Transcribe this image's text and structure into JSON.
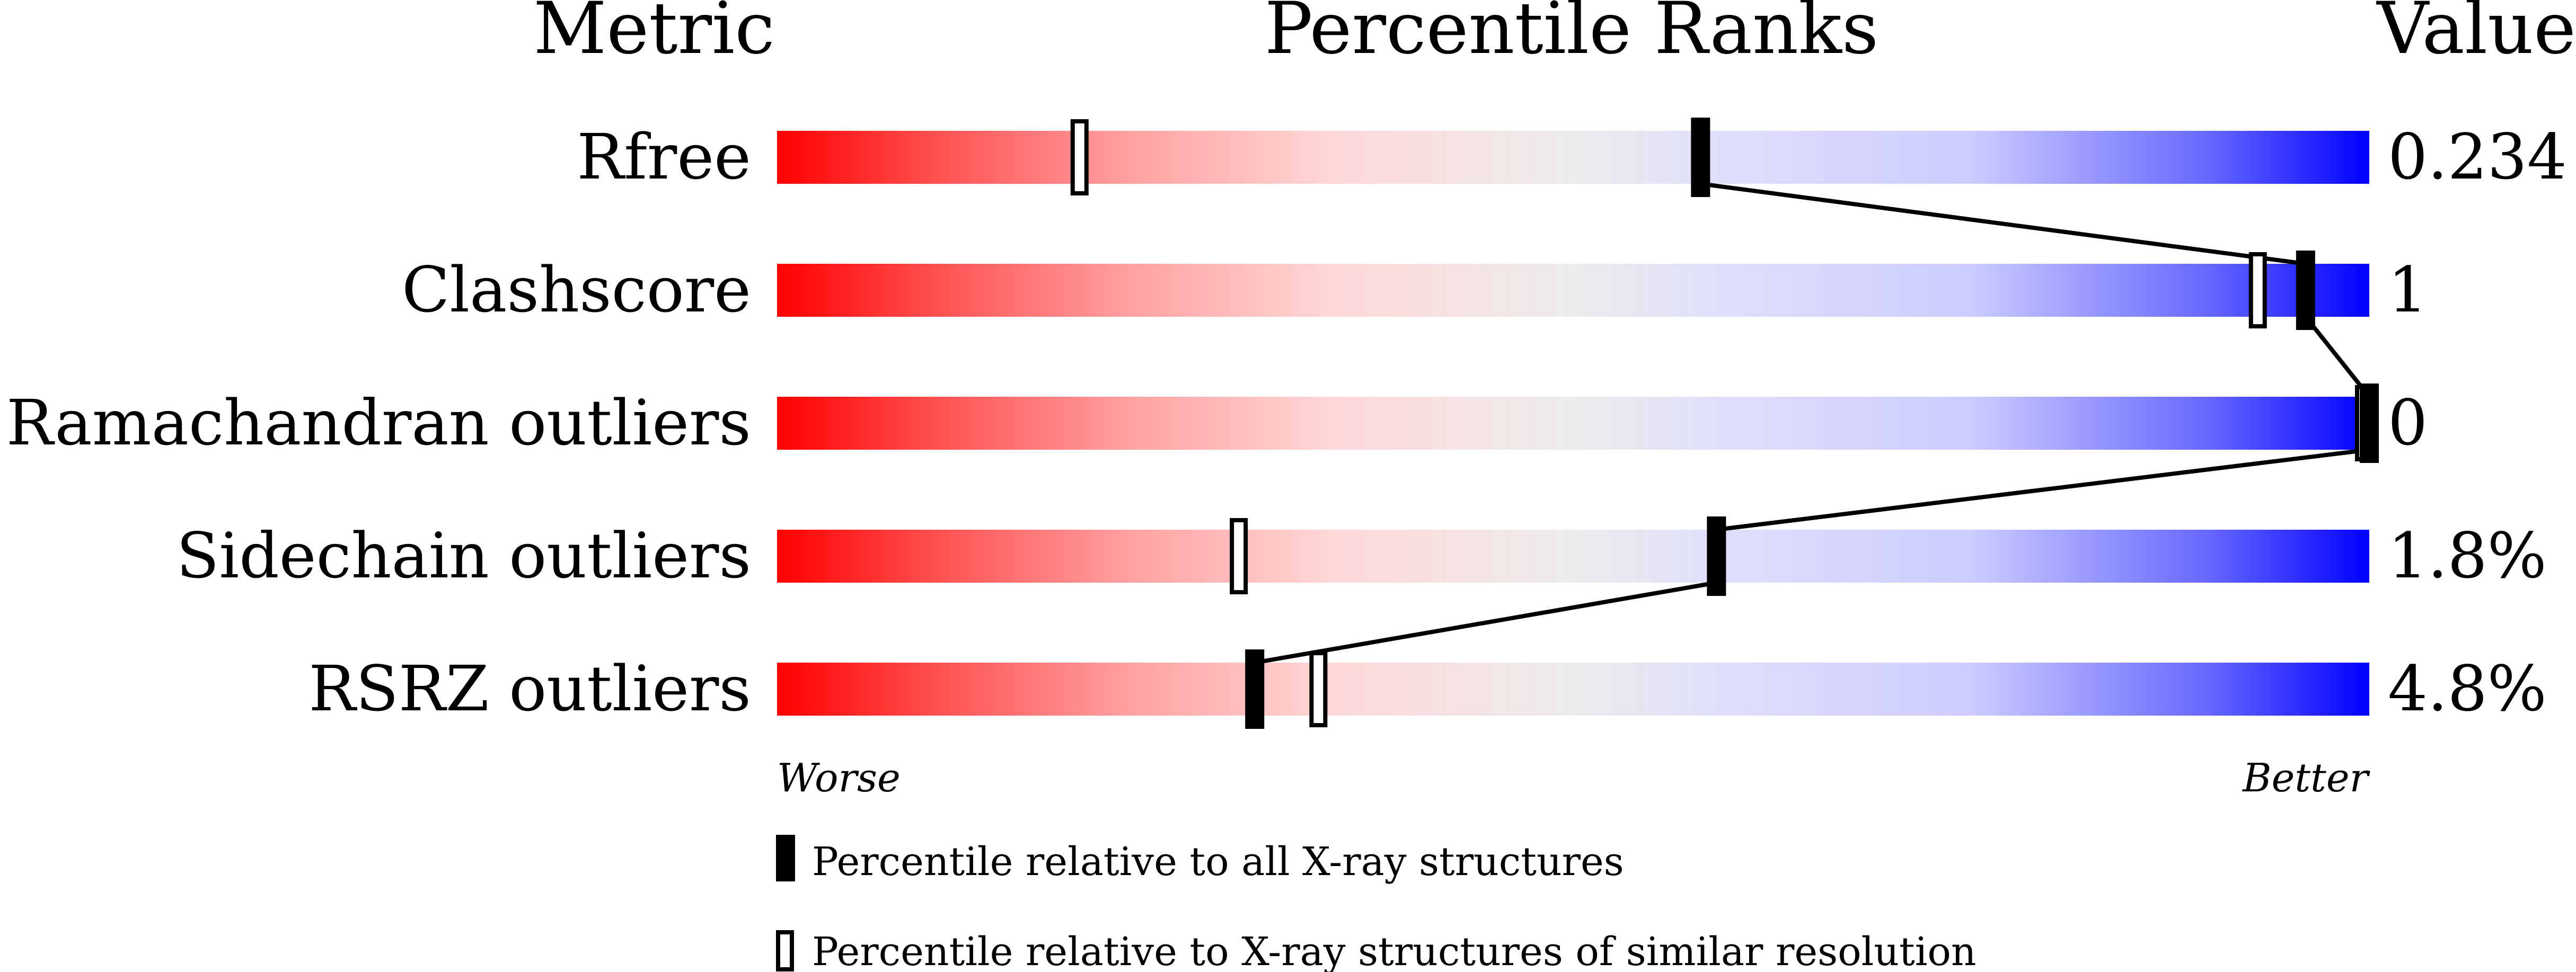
{
  "chart_data": {
    "type": "percentile-bars",
    "headers": {
      "metric": "Metric",
      "ranks": "Percentile Ranks",
      "value": "Value"
    },
    "xlim": [
      0,
      100
    ],
    "axis_left_label": "Worse",
    "axis_right_label": "Better",
    "metrics": [
      {
        "name": "Rfree",
        "value": "0.234",
        "percentile_all": 58,
        "percentile_similar": 19
      },
      {
        "name": "Clashscore",
        "value": "1",
        "percentile_all": 96,
        "percentile_similar": 93
      },
      {
        "name": "Ramachandran outliers",
        "value": "0",
        "percentile_all": 100,
        "percentile_similar": 100
      },
      {
        "name": "Sidechain outliers",
        "value": "1.8%",
        "percentile_all": 59,
        "percentile_similar": 29
      },
      {
        "name": "RSRZ outliers",
        "value": "4.8%",
        "percentile_all": 30,
        "percentile_similar": 34
      }
    ],
    "legend": {
      "all": "Percentile relative to all X-ray structures",
      "similar": "Percentile relative to X-ray structures of similar resolution"
    },
    "colors": {
      "worse": "#ff0000",
      "middle": "#eeeeee",
      "better": "#0000ff",
      "marker": "#000000"
    }
  }
}
